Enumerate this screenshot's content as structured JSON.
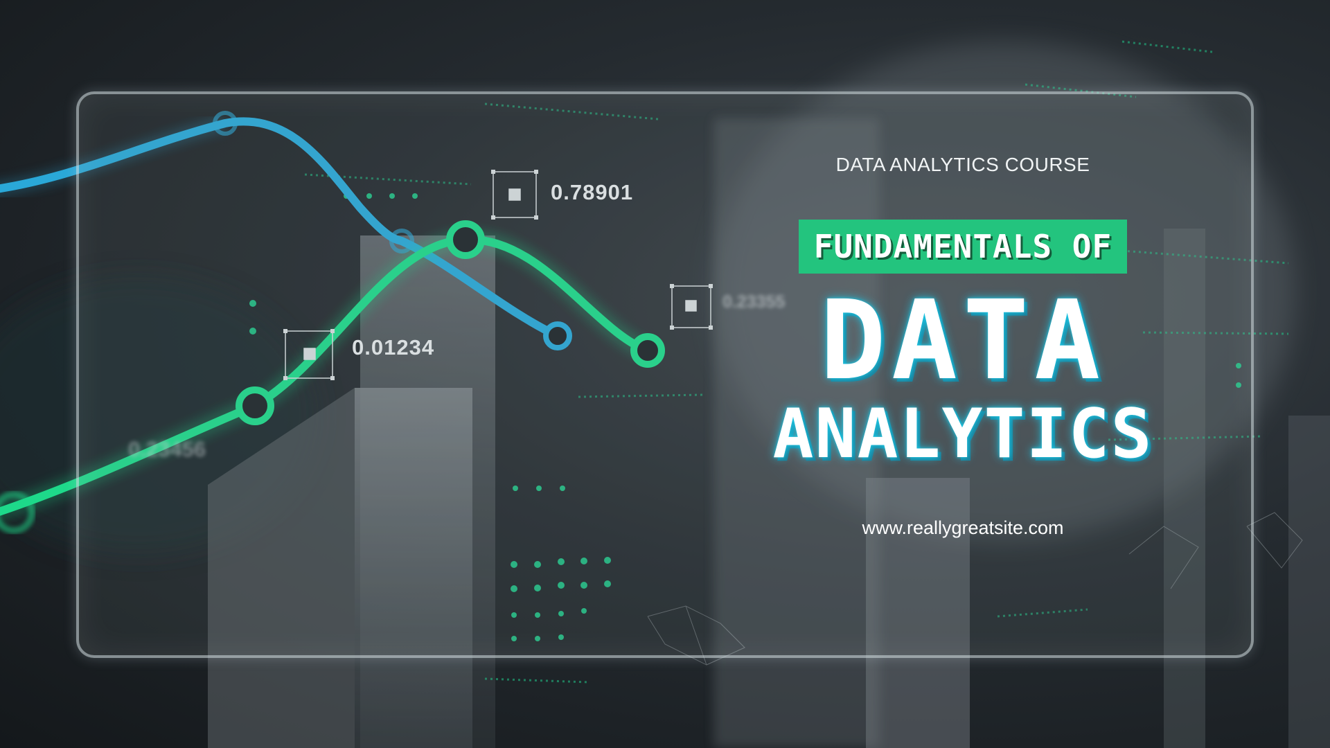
{
  "hero": {
    "course_label": "DATA ANALYTICS COURSE",
    "fundamentals_label": "FUNDAMENTALS OF",
    "title_line1": "DATA",
    "title_line2": "ANALYTICS",
    "website": "www.reallygreatsite.com"
  },
  "data_readouts": {
    "top": "0.78901",
    "mid": "0.01234",
    "right": "0.23355",
    "left": "0.23456"
  },
  "colors": {
    "accent_green": "#23c47e",
    "line_green": "#1ed98a",
    "line_blue": "#2aa8d8",
    "title_glow": "#1ec8e6",
    "background": "#252b30"
  }
}
